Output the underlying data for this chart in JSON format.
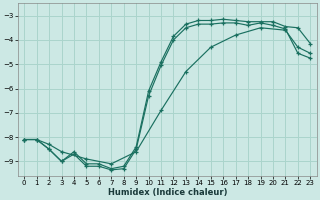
{
  "xlabel": "Humidex (Indice chaleur)",
  "bg_color": "#cce8e4",
  "grid_color": "#aad4cc",
  "line_color": "#1a7060",
  "xlim": [
    -0.5,
    23.5
  ],
  "ylim": [
    -9.6,
    -2.5
  ],
  "yticks": [
    -9,
    -8,
    -7,
    -6,
    -5,
    -4,
    -3
  ],
  "xticks": [
    0,
    1,
    2,
    3,
    4,
    5,
    6,
    7,
    8,
    9,
    10,
    11,
    12,
    13,
    14,
    15,
    16,
    17,
    18,
    19,
    20,
    21,
    22,
    23
  ],
  "curve1_x": [
    0,
    1,
    2,
    3,
    4,
    5,
    6,
    7,
    8,
    9,
    10,
    11,
    12,
    13,
    14,
    15,
    16,
    17,
    18,
    19,
    20,
    21,
    22,
    23
  ],
  "curve1_y": [
    -8.1,
    -8.1,
    -8.5,
    -9.0,
    -8.6,
    -9.1,
    -9.1,
    -9.3,
    -9.2,
    -8.4,
    -6.1,
    -4.9,
    -3.85,
    -3.35,
    -3.2,
    -3.2,
    -3.15,
    -3.2,
    -3.25,
    -3.25,
    -3.25,
    -3.45,
    -3.5,
    -4.15
  ],
  "curve2_x": [
    0,
    1,
    2,
    3,
    4,
    5,
    6,
    7,
    8,
    9,
    10,
    11,
    12,
    13,
    14,
    15,
    16,
    17,
    18,
    19,
    20,
    21,
    22,
    23
  ],
  "curve2_y": [
    -8.1,
    -8.1,
    -8.5,
    -9.0,
    -8.7,
    -9.2,
    -9.2,
    -9.35,
    -9.3,
    -8.5,
    -6.3,
    -5.05,
    -4.0,
    -3.5,
    -3.35,
    -3.35,
    -3.3,
    -3.3,
    -3.4,
    -3.3,
    -3.4,
    -3.55,
    -4.55,
    -4.75
  ],
  "curve3_x": [
    0,
    1,
    2,
    3,
    5,
    7,
    9,
    11,
    13,
    15,
    17,
    19,
    21,
    22,
    23
  ],
  "curve3_y": [
    -8.1,
    -8.1,
    -8.3,
    -8.6,
    -8.9,
    -9.1,
    -8.6,
    -6.9,
    -5.3,
    -4.3,
    -3.8,
    -3.5,
    -3.6,
    -4.3,
    -4.55
  ]
}
